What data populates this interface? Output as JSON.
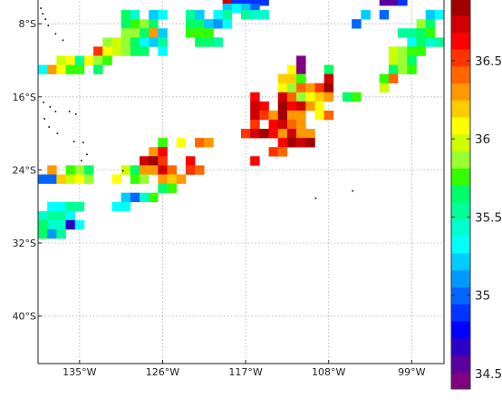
{
  "map": {
    "lat_labels": [
      {
        "lat": -8,
        "text": "8°S"
      },
      {
        "lat": -16,
        "text": "16°S"
      },
      {
        "lat": -24,
        "text": "24°S"
      },
      {
        "lat": -32,
        "text": "32°S"
      },
      {
        "lat": -40,
        "text": "40°S"
      }
    ],
    "lon_labels": [
      {
        "lon": -135,
        "text": "135°W"
      },
      {
        "lon": -126,
        "text": "126°W"
      },
      {
        "lon": -117,
        "text": "117°W"
      },
      {
        "lon": -108,
        "text": "108°W"
      },
      {
        "lon": -99,
        "text": "99°W"
      }
    ],
    "lon_range": [
      -139.5,
      -95.5
    ],
    "lat_range": [
      -45.2,
      -5.2
    ],
    "gridlines": true
  },
  "colorbar": {
    "range": [
      34.4,
      36.9
    ],
    "tick_labels": [
      {
        "value": 34.5,
        "text": "34.5"
      },
      {
        "value": 35,
        "text": "35"
      },
      {
        "value": 35.5,
        "text": "35.5"
      },
      {
        "value": 36,
        "text": "36"
      },
      {
        "value": 36.5,
        "text": "36.5"
      }
    ],
    "colors": [
      "#800080",
      "#5a009e",
      "#2d00c8",
      "#0000ff",
      "#0033ff",
      "#0066ff",
      "#0099ff",
      "#00ccff",
      "#00ffff",
      "#00ffcc",
      "#00ff99",
      "#00ff66",
      "#33ff00",
      "#99ff33",
      "#ccff00",
      "#ffff00",
      "#ffcc00",
      "#ff9900",
      "#ff6600",
      "#ff3300",
      "#ff0000",
      "#d00000",
      "#a00000"
    ]
  },
  "chart_data": {
    "type": "heatmap",
    "cell_size_deg": [
      1,
      1
    ],
    "value_range": [
      34.4,
      36.9
    ],
    "cells": [
      [
        -119,
        -5.5,
        36.75
      ],
      [
        -118,
        -5.5,
        34.9
      ],
      [
        -117,
        -5.5,
        34.9
      ],
      [
        -116,
        -5.5,
        34.9
      ],
      [
        -115,
        -5.5,
        34.9
      ],
      [
        -102,
        -5.5,
        34.55
      ],
      [
        -101,
        -5.5,
        34.55
      ],
      [
        -100,
        -5.5,
        34.9
      ],
      [
        -119,
        -6.3,
        35.2
      ],
      [
        -118,
        -6.3,
        35.3
      ],
      [
        -117,
        -6.3,
        35.2
      ],
      [
        -116,
        -6.3,
        34.95
      ],
      [
        -130,
        -7,
        35.6
      ],
      [
        -129,
        -7,
        35.4
      ],
      [
        -127,
        -7,
        35.25
      ],
      [
        -126,
        -7,
        35.35
      ],
      [
        -123,
        -7,
        35.5
      ],
      [
        -122,
        -7,
        35.2
      ],
      [
        -120,
        -7,
        35.35
      ],
      [
        -119,
        -7,
        35.5
      ],
      [
        -117,
        -7,
        35.5
      ],
      [
        -116,
        -7,
        35.4
      ],
      [
        -115,
        -7,
        35.4
      ],
      [
        -104,
        -7,
        35.25
      ],
      [
        -102,
        -7,
        35.05
      ],
      [
        -97,
        -7,
        35.2
      ],
      [
        -96,
        -7,
        35.3
      ],
      [
        -130,
        -8,
        35.7
      ],
      [
        -129,
        -8,
        35.8
      ],
      [
        -128,
        -8,
        35.9
      ],
      [
        -127,
        -8,
        35.6
      ],
      [
        -123,
        -8,
        35.6
      ],
      [
        -122,
        -8,
        35.65
      ],
      [
        -121,
        -8,
        35.2
      ],
      [
        -120,
        -8,
        35.1
      ],
      [
        -119,
        -8,
        35.3
      ],
      [
        -105,
        -8,
        35.05
      ],
      [
        -98,
        -8,
        35.9
      ],
      [
        -97,
        -8,
        35.7
      ],
      [
        -130,
        -9,
        35.9
      ],
      [
        -129,
        -9,
        35.85
      ],
      [
        -128,
        -9,
        35.7
      ],
      [
        -127,
        -9,
        36.3
      ],
      [
        -126,
        -9,
        35.2
      ],
      [
        -123,
        -9,
        35.75
      ],
      [
        -122,
        -9,
        35.8
      ],
      [
        -121,
        -9,
        35.75
      ],
      [
        -100,
        -9,
        35.5
      ],
      [
        -99,
        -9,
        35.55
      ],
      [
        -98,
        -9,
        35.6
      ],
      [
        -97,
        -9,
        35.75
      ],
      [
        -132,
        -10,
        35.9
      ],
      [
        -131,
        -10,
        35.95
      ],
      [
        -130,
        -10,
        35.85
      ],
      [
        -129,
        -10,
        35.6
      ],
      [
        -128,
        -10,
        35.3
      ],
      [
        -127,
        -10,
        35.2
      ],
      [
        -126,
        -10,
        35.5
      ],
      [
        -122,
        -10,
        35.65
      ],
      [
        -121,
        -10,
        35.7
      ],
      [
        -120,
        -10,
        35.5
      ],
      [
        -99,
        -10,
        35.35
      ],
      [
        -98,
        -10,
        35.65
      ],
      [
        -97,
        -10,
        35.4
      ],
      [
        -96,
        -10,
        35.5
      ],
      [
        -133,
        -11,
        36.5
      ],
      [
        -132,
        -11,
        36.1
      ],
      [
        -131,
        -11,
        35.95
      ],
      [
        -130,
        -11,
        35.9
      ],
      [
        -129,
        -11,
        35.7
      ],
      [
        -128,
        -11,
        35.65
      ],
      [
        -126,
        -11,
        35.3
      ],
      [
        -101,
        -11,
        36.0
      ],
      [
        -100,
        -11,
        35.9
      ],
      [
        -99,
        -11,
        35.8
      ],
      [
        -98,
        -11,
        35.75
      ],
      [
        -137,
        -12,
        36.0
      ],
      [
        -136,
        -12,
        36.1
      ],
      [
        -135,
        -12,
        35.5
      ],
      [
        -134,
        -12,
        36.1
      ],
      [
        -133,
        -12,
        35.85
      ],
      [
        -132,
        -12,
        35.8
      ],
      [
        -111,
        -12,
        34.45
      ],
      [
        -101,
        -12,
        35.95
      ],
      [
        -100,
        -12,
        35.85
      ],
      [
        -99,
        -12,
        35.7
      ],
      [
        -139,
        -13,
        35.3
      ],
      [
        -138,
        -13,
        36.3
      ],
      [
        -137,
        -13,
        36.1
      ],
      [
        -136,
        -13,
        35.8
      ],
      [
        -135,
        -13,
        35.8
      ],
      [
        -133,
        -13,
        35.6
      ],
      [
        -112,
        -13,
        36.1
      ],
      [
        -111,
        -13,
        34.45
      ],
      [
        -108,
        -13,
        35.6
      ],
      [
        -101,
        -13,
        35.6
      ],
      [
        -100,
        -13,
        35.9
      ],
      [
        -99,
        -13,
        35.75
      ],
      [
        -113,
        -14,
        36.2
      ],
      [
        -112,
        -14,
        36.15
      ],
      [
        -111,
        -14,
        35.75
      ],
      [
        -108,
        -14,
        36.75
      ],
      [
        -102,
        -14,
        35.8
      ],
      [
        -101,
        -14,
        36.4
      ],
      [
        -113,
        -15,
        36.05
      ],
      [
        -112,
        -15,
        35.9
      ],
      [
        -111,
        -15,
        36.4
      ],
      [
        -110,
        -15,
        36.3
      ],
      [
        -109,
        -15,
        36.5
      ],
      [
        -108,
        -15,
        36.85
      ],
      [
        -102,
        -15,
        36.0
      ],
      [
        -116,
        -16,
        36.6
      ],
      [
        -113,
        -16,
        36.7
      ],
      [
        -112,
        -16,
        36.4
      ],
      [
        -111,
        -16,
        35.9
      ],
      [
        -110,
        -16,
        36.1
      ],
      [
        -109,
        -16,
        36.15
      ],
      [
        -108,
        -16,
        36.3
      ],
      [
        -106,
        -16,
        35.65
      ],
      [
        -105,
        -16,
        35.75
      ],
      [
        -116,
        -17,
        36.7
      ],
      [
        -115,
        -17,
        36.65
      ],
      [
        -113,
        -17,
        36.8
      ],
      [
        -112,
        -17,
        36.6
      ],
      [
        -111,
        -17,
        36.7
      ],
      [
        -110,
        -17,
        36.3
      ],
      [
        -109,
        -17,
        36.05
      ],
      [
        -116,
        -18,
        36.75
      ],
      [
        -115,
        -18,
        36.5
      ],
      [
        -114,
        -18,
        36.35
      ],
      [
        -113,
        -18,
        36.85
      ],
      [
        -112,
        -18,
        36.3
      ],
      [
        -111,
        -18,
        36.25
      ],
      [
        -109,
        -18,
        36.1
      ],
      [
        -108,
        -18,
        36.4
      ],
      [
        -116,
        -19,
        36.55
      ],
      [
        -114,
        -19,
        36.6
      ],
      [
        -113,
        -19,
        36.7
      ],
      [
        -112,
        -19,
        36.4
      ],
      [
        -111,
        -19,
        36.3
      ],
      [
        -117,
        -20,
        36.5
      ],
      [
        -116,
        -20,
        36.75
      ],
      [
        -115,
        -20,
        36.85
      ],
      [
        -114,
        -20,
        36.6
      ],
      [
        -113,
        -20,
        36.25
      ],
      [
        -112,
        -20,
        36.7
      ],
      [
        -111,
        -20,
        36.3
      ],
      [
        -110,
        -20,
        36.35
      ],
      [
        -126,
        -21,
        35.75
      ],
      [
        -124,
        -21,
        36.1
      ],
      [
        -122,
        -21,
        36.4
      ],
      [
        -121,
        -21,
        36.35
      ],
      [
        -113,
        -21,
        36.65
      ],
      [
        -112,
        -21,
        36.85
      ],
      [
        -111,
        -21,
        36.75
      ],
      [
        -110,
        -21,
        36.9
      ],
      [
        -127,
        -22,
        36.3
      ],
      [
        -126,
        -22,
        36.6
      ],
      [
        -114,
        -22,
        36.5
      ],
      [
        -113,
        -22,
        36.45
      ],
      [
        -128,
        -23,
        36.75
      ],
      [
        -127,
        -23,
        36.85
      ],
      [
        -126,
        -23,
        36.55
      ],
      [
        -123,
        -23,
        36.65
      ],
      [
        -116,
        -23,
        36.6
      ],
      [
        -138,
        -24,
        36.35
      ],
      [
        -136,
        -24,
        35.75
      ],
      [
        -135,
        -24,
        35.9
      ],
      [
        -134,
        -24,
        35.7
      ],
      [
        -130,
        -24,
        35.95
      ],
      [
        -129,
        -24,
        35.7
      ],
      [
        -128,
        -24,
        36.25
      ],
      [
        -127,
        -24,
        36.35
      ],
      [
        -126,
        -24,
        36.7
      ],
      [
        -125,
        -24,
        36.45
      ],
      [
        -123,
        -24,
        36.5
      ],
      [
        -122,
        -24,
        36.4
      ],
      [
        -139,
        -25,
        35.0
      ],
      [
        -138,
        -25,
        35.05
      ],
      [
        -137,
        -25,
        36.15
      ],
      [
        -136,
        -25,
        36.0
      ],
      [
        -135,
        -25,
        36.05
      ],
      [
        -134,
        -25,
        35.9
      ],
      [
        -131,
        -25,
        36.05
      ],
      [
        -129,
        -25,
        35.75
      ],
      [
        -128,
        -25,
        35.9
      ],
      [
        -126,
        -25,
        36.25
      ],
      [
        -125,
        -25,
        36.15
      ],
      [
        -124,
        -25,
        36.3
      ],
      [
        -126,
        -26,
        35.7
      ],
      [
        -125,
        -26,
        35.8
      ],
      [
        -130,
        -27,
        35.2
      ],
      [
        -129,
        -27,
        35.0
      ],
      [
        -128,
        -27,
        35.4
      ],
      [
        -127,
        -27,
        35.8
      ],
      [
        -131,
        -28,
        35.35
      ],
      [
        -130,
        -28,
        35.3
      ],
      [
        -138,
        -28,
        35.35
      ],
      [
        -137,
        -28,
        35.3
      ],
      [
        -136,
        -28,
        35.5
      ],
      [
        -135,
        -28,
        35.55
      ],
      [
        -139,
        -29,
        35.4
      ],
      [
        -138,
        -29,
        35.55
      ],
      [
        -137,
        -29,
        35.5
      ],
      [
        -136,
        -29,
        35.35
      ],
      [
        -139,
        -30,
        35.6
      ],
      [
        -138,
        -30,
        35.45
      ],
      [
        -137,
        -30,
        35.4
      ],
      [
        -136,
        -30,
        34.7
      ],
      [
        -135,
        -30,
        35.3
      ],
      [
        -139,
        -31,
        35.7
      ],
      [
        -138,
        -31,
        35.1
      ],
      [
        -137,
        -31,
        35.5
      ]
    ],
    "islands": [
      [
        -139.2,
        -6.3
      ],
      [
        -139.0,
        -6.9
      ],
      [
        -138.7,
        -7.5
      ],
      [
        -138.4,
        -8.2
      ],
      [
        -137.6,
        -9.1
      ],
      [
        -136.8,
        -9.8
      ],
      [
        -138.9,
        -16.6
      ],
      [
        -138.2,
        -17.1
      ],
      [
        -137.6,
        -17.6
      ],
      [
        -136.1,
        -17.6
      ],
      [
        -135.4,
        -17.9
      ],
      [
        -138.8,
        -18.4
      ],
      [
        -138.3,
        -19.3
      ],
      [
        -137.4,
        -20.0
      ],
      [
        -135.6,
        -20.9
      ],
      [
        -134.6,
        -21.0
      ],
      [
        -134.2,
        -22.3
      ],
      [
        -134.8,
        -23.0
      ],
      [
        -130.3,
        -24.1
      ],
      [
        -109.4,
        -27.1
      ],
      [
        -105.4,
        -26.3
      ]
    ]
  }
}
